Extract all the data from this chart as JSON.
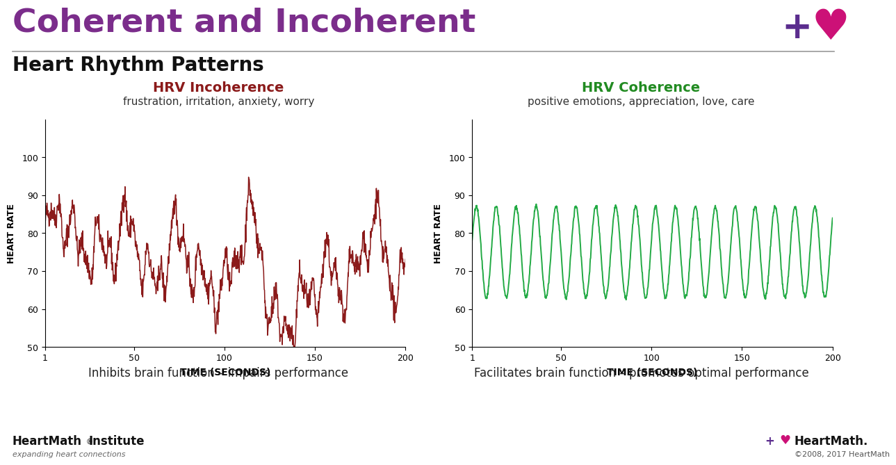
{
  "title_main": "Coherent and Incoherent",
  "title_sub": "Heart Rhythm Patterns",
  "title_color": "#7B2D8B",
  "title_fontsize": 34,
  "subtitle_fontsize": 20,
  "bg_color": "#FFFFFF",
  "left_title": "HRV Incoherence",
  "left_subtitle": "frustration, irritation, anxiety, worry",
  "left_title_color": "#8B1A1A",
  "left_caption": "Inhibits brain function – impairs performance",
  "left_line_color": "#8B1A1A",
  "right_title": "HRV Coherence",
  "right_subtitle": "positive emotions, appreciation, love, care",
  "right_title_color": "#228B22",
  "right_caption": "Facilitates brain function – promotes optimal performance",
  "right_line_color": "#22AA44",
  "xlabel": "TIME (SECONDS)",
  "ylabel": "HEART RATE",
  "xlim": [
    1,
    200
  ],
  "ylim": [
    50,
    110
  ],
  "yticks": [
    50,
    60,
    70,
    80,
    90,
    100
  ],
  "xticks": [
    1,
    50,
    100,
    150,
    200
  ],
  "footer_left1": "HeartMath",
  "footer_left1_super": "®",
  "footer_left2": "Institute",
  "footer_left3": "expanding heart connections",
  "footer_right3": "©2008, 2017 HeartMath"
}
